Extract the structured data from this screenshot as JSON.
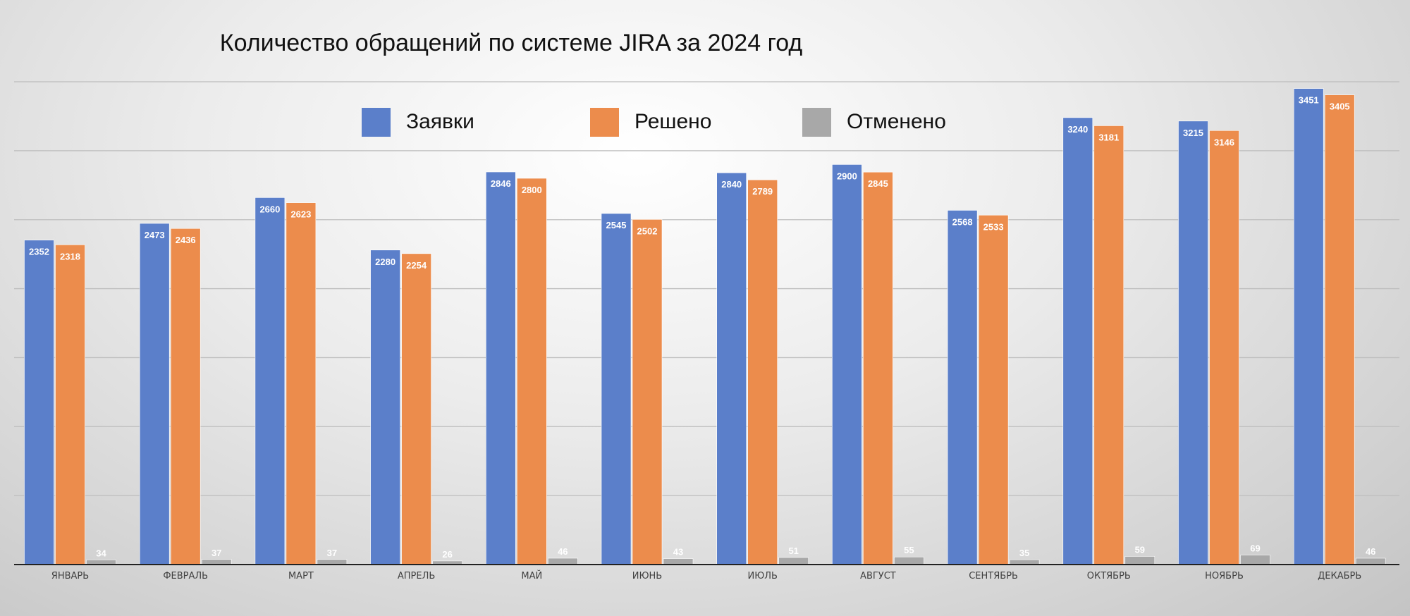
{
  "chart_data": {
    "type": "bar",
    "title": "Количество обращений по системе JIRA за 2024 год",
    "categories": [
      "ЯНВАРЬ",
      "ФЕВРАЛЬ",
      "МАРТ",
      "АПРЕЛЬ",
      "МАЙ",
      "ИЮНЬ",
      "ИЮЛЬ",
      "АВГУСТ",
      "СЕНТЯБРЬ",
      "ОКТЯБРЬ",
      "НОЯБРЬ",
      "ДЕКАБРЬ"
    ],
    "series": [
      {
        "name": "Заявки",
        "color": "#5b7fca",
        "values": [
          2352,
          2473,
          2660,
          2280,
          2846,
          2545,
          2840,
          2900,
          2568,
          3240,
          3215,
          3451
        ]
      },
      {
        "name": "Решено",
        "color": "#ec8c4c",
        "values": [
          2318,
          2436,
          2623,
          2254,
          2800,
          2502,
          2789,
          2845,
          2533,
          3181,
          3146,
          3405
        ]
      },
      {
        "name": "Отменено",
        "color": "#a8a8a8",
        "values": [
          34,
          37,
          37,
          26,
          46,
          43,
          51,
          55,
          35,
          59,
          69,
          46
        ]
      }
    ],
    "ylim": [
      0,
      3500
    ],
    "grid_step": 500,
    "grid": true,
    "y_axis_labels_shown": false,
    "legend_position": "top",
    "data_labels": true
  }
}
